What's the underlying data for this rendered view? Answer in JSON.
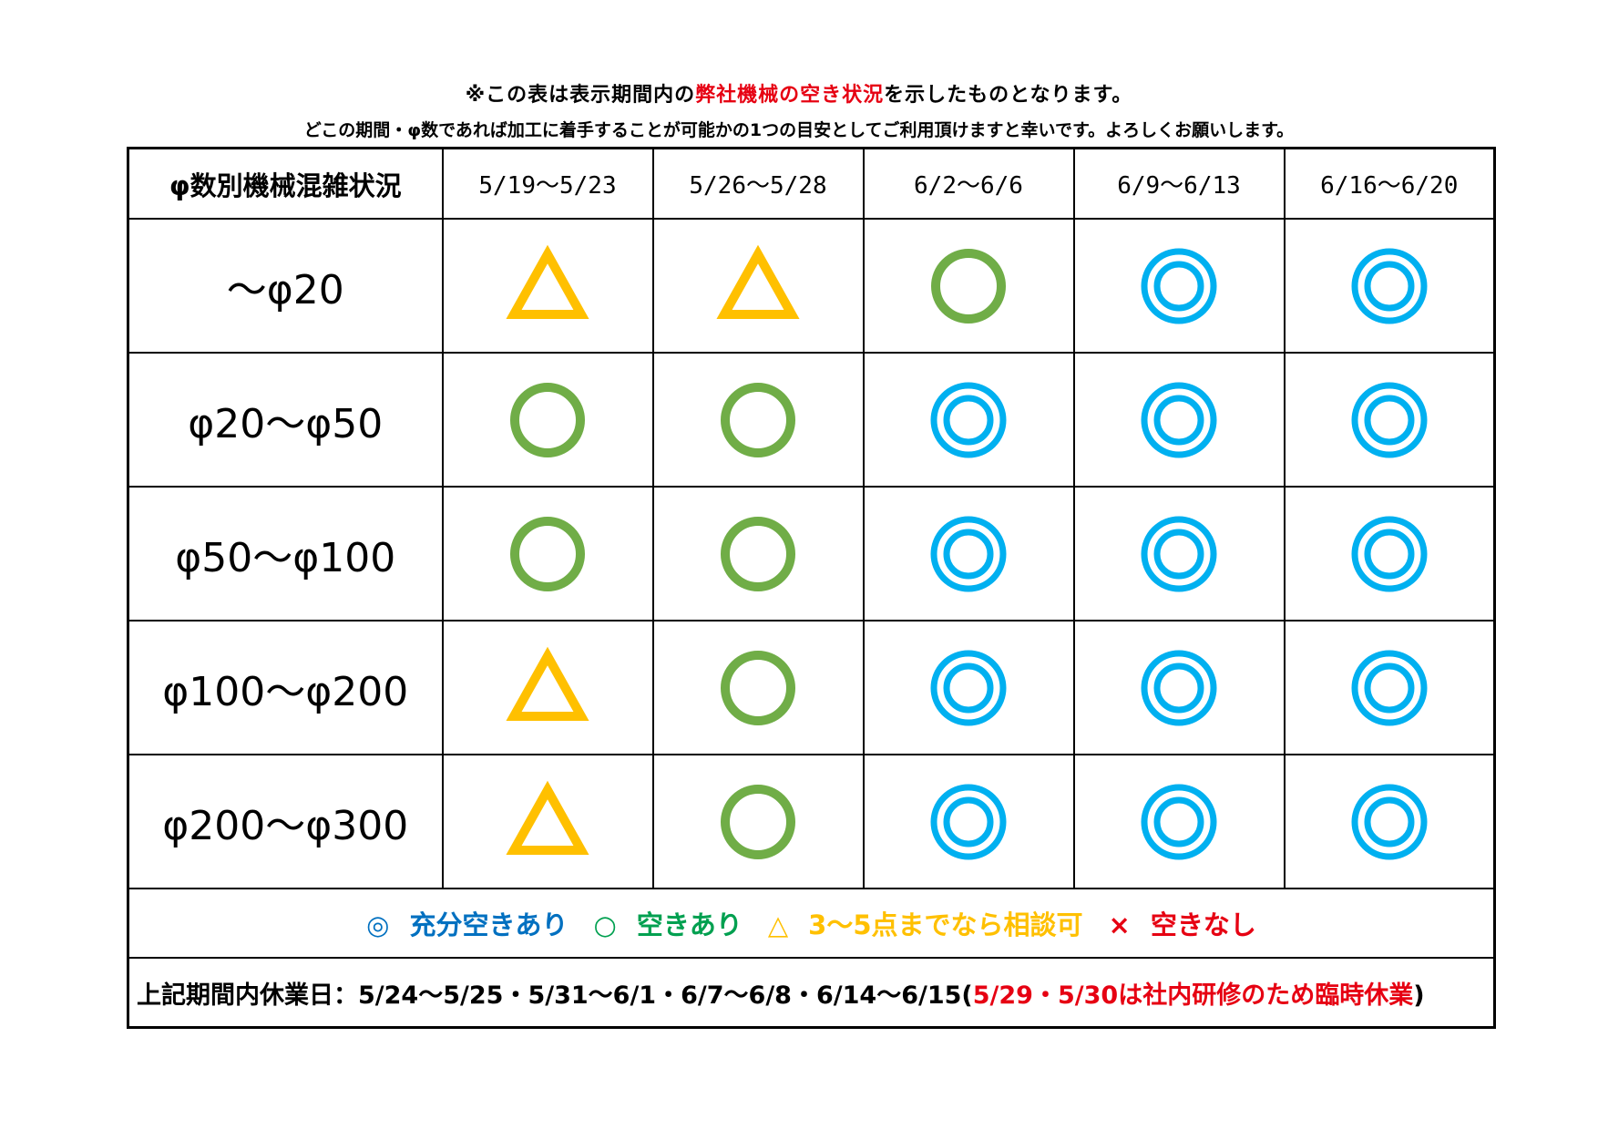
{
  "notes": {
    "line1_pre": "※この表は表示期間内の",
    "line1_red": "弊社機械の空き状況",
    "line1_post": "を示したものとなります。",
    "line2": "どこの期間・φ数であれば加工に着手することが可能かの1つの目安としてご利用頂けますと幸いです。よろしくお願いします。"
  },
  "table": {
    "corner_label": "φ数別機械混雑状況",
    "periods": [
      "5/19〜5/23",
      "5/26〜5/28",
      "6/2〜6/6",
      "6/9〜6/13",
      "6/16〜6/20"
    ],
    "rows": [
      {
        "label": "〜φ20",
        "status": [
          "triangle",
          "triangle",
          "circle",
          "double_circle",
          "double_circle"
        ]
      },
      {
        "label": "φ20〜φ50",
        "status": [
          "circle",
          "circle",
          "double_circle",
          "double_circle",
          "double_circle"
        ]
      },
      {
        "label": "φ50〜φ100",
        "status": [
          "circle",
          "circle",
          "double_circle",
          "double_circle",
          "double_circle"
        ]
      },
      {
        "label": "φ100〜φ200",
        "status": [
          "triangle",
          "circle",
          "double_circle",
          "double_circle",
          "double_circle"
        ]
      },
      {
        "label": "φ200〜φ300",
        "status": [
          "triangle",
          "circle",
          "double_circle",
          "double_circle",
          "double_circle"
        ]
      }
    ]
  },
  "legend": [
    {
      "symbol": "◎",
      "label": "充分空きあり",
      "color": "#0070c0"
    },
    {
      "symbol": "○",
      "label": "空きあり",
      "color": "#00a050"
    },
    {
      "symbol": "△",
      "label": "3〜5点までなら相談可",
      "color": "#ffc000"
    },
    {
      "symbol": "×",
      "label": "空きなし",
      "color": "#e60012"
    }
  ],
  "mark_colors": {
    "triangle": "#ffc000",
    "circle": "#70ad47",
    "double_circle": "#00b0f0"
  },
  "holidays": {
    "label": "上記期間内休業日",
    "dates": "：5/24〜5/25・5/31〜6/1・6/7〜6/8・6/14〜6/15(",
    "red": "5/29・5/30は社内研修のため臨時休業",
    "close": ")"
  }
}
